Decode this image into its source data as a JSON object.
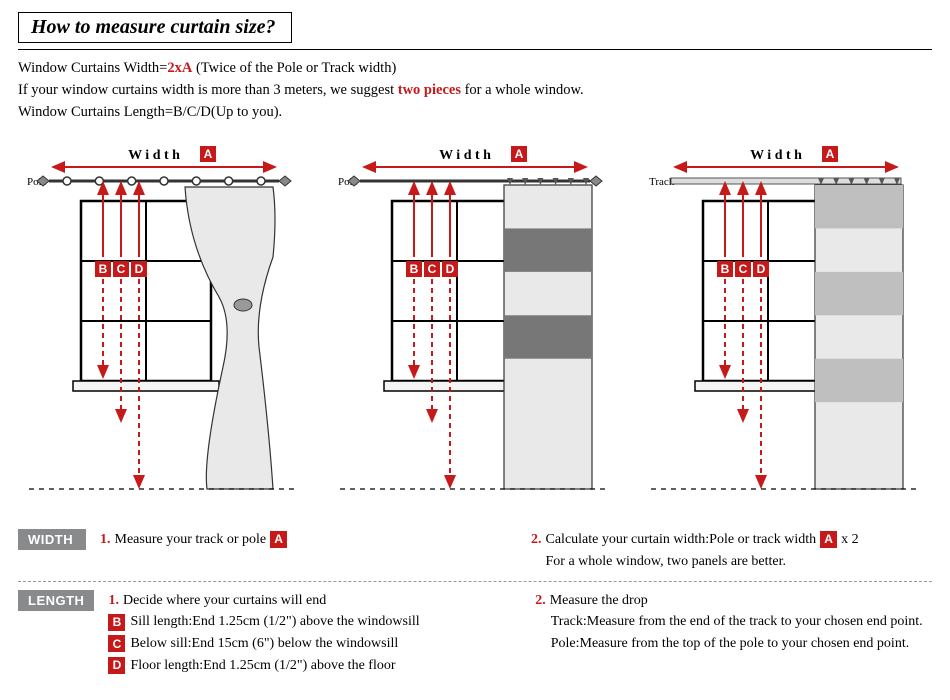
{
  "title": "How to measure  curtain  size?",
  "intro": {
    "line1_a": "Window Curtains Width=",
    "line1_red": "2xA",
    "line1_b": " (Twice of the Pole or Track width)",
    "line2_a": "If your window curtains width is more than 3 meters, we suggest ",
    "line2_red": "two pieces",
    "line2_b": " for a whole window.",
    "line3": "Window Curtains Length=B/C/D(Up to you)."
  },
  "colors": {
    "accent": "#c61a1a",
    "label_bg": "#888a8c",
    "outline": "#000000",
    "curtain_fill": "#e9e9e9",
    "pattern": "#bfbfbf"
  },
  "diagram": {
    "width_label": "W i d t h",
    "badge_A": "A",
    "badges_BCD": [
      "B",
      "C",
      "D"
    ],
    "panels": [
      {
        "hanger": "Pole",
        "style": "grommet_tied"
      },
      {
        "hanger": "Pole",
        "style": "pleat_striped"
      },
      {
        "hanger": "Track",
        "style": "pleat_pattern"
      }
    ]
  },
  "width_section": {
    "label": "WIDTH",
    "step1_num": "1.",
    "step1_text": "Measure your track or pole",
    "step1_badge": "A",
    "step2_num": "2.",
    "step2_text_a": "Calculate your curtain width:Pole or track width",
    "step2_badge": "A",
    "step2_text_b": " x 2",
    "step2_sub": "For a whole window, two panels are better."
  },
  "length_section": {
    "label": "LENGTH",
    "step1_num": "1.",
    "step1_text": "Decide where your curtains will end",
    "subs": [
      {
        "badge": "B",
        "text": "Sill length:End 1.25cm (1/2\") above the windowsill"
      },
      {
        "badge": "C",
        "text": "Below sill:End 15cm (6\") below the windowsill"
      },
      {
        "badge": "D",
        "text": "Floor length:End 1.25cm (1/2\") above the floor"
      }
    ],
    "step2_num": "2.",
    "step2_text": "Measure the drop",
    "step2_subs": [
      "Track:Measure from the end of the track to your chosen end point.",
      "Pole:Measure from the top of the pole to your chosen end point."
    ]
  }
}
